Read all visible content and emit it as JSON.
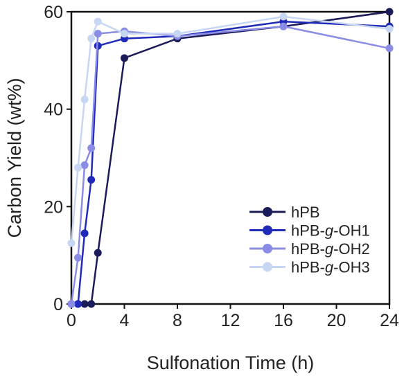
{
  "chart_data": {
    "type": "line",
    "title": "",
    "xlabel": "Sulfonation Time (h)",
    "ylabel": "Carbon Yield (wt%)",
    "xlim": [
      0,
      24
    ],
    "ylim": [
      0,
      60
    ],
    "xticks": [
      0,
      4,
      8,
      12,
      16,
      20,
      24
    ],
    "yticks": [
      0,
      20,
      40,
      60
    ],
    "grid": false,
    "legend_position": "bottom-right",
    "series": [
      {
        "name": "hPB",
        "color": "#1b1b5a",
        "x": [
          0,
          0.5,
          1,
          1.5,
          2,
          4,
          8,
          16,
          24
        ],
        "y": [
          0,
          0,
          0,
          0,
          10.5,
          50.5,
          54.5,
          57,
          60
        ]
      },
      {
        "name": "hPB-g-OH1",
        "color": "#1f2bb8",
        "x": [
          0,
          0.5,
          1,
          1.5,
          2,
          4,
          8,
          16,
          24
        ],
        "y": [
          0,
          0,
          14.5,
          25.5,
          53,
          54.5,
          55,
          58,
          57
        ]
      },
      {
        "name": "hPB-g-OH2",
        "color": "#8a8ce6",
        "x": [
          0,
          0.5,
          1,
          1.5,
          2,
          4,
          8,
          16,
          24
        ],
        "y": [
          0,
          9.5,
          28.5,
          32,
          55.5,
          56,
          55,
          57,
          52.5
        ]
      },
      {
        "name": "hPB-g-OH3",
        "color": "#c7d6f2",
        "x": [
          0,
          0.5,
          1,
          1.5,
          2,
          4,
          8,
          16,
          24
        ],
        "y": [
          12.5,
          28,
          42,
          54.5,
          58,
          55.5,
          55.5,
          59,
          56.5
        ]
      }
    ],
    "legend_entries": [
      {
        "prefix": "hPB-",
        "italic": "",
        "suffix": ""
      },
      {
        "prefix": "hPB-",
        "italic": "g",
        "suffix": "-OH1"
      },
      {
        "prefix": "hPB-",
        "italic": "g",
        "suffix": "-OH2"
      },
      {
        "prefix": "hPB-",
        "italic": "g",
        "suffix": "-OH3"
      }
    ]
  }
}
